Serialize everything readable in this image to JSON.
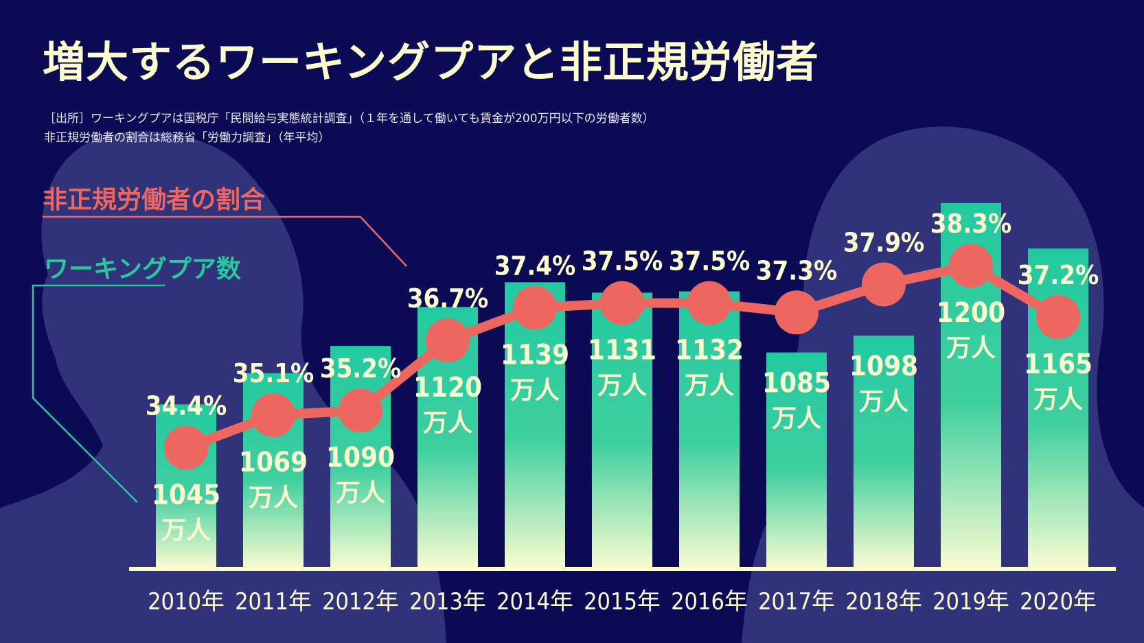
{
  "title": "増大するワーキングプアと非正規労働者",
  "source": {
    "line1": "［出所］ワーキングプアは国税庁「民間給与実態統計調査」（１年を通して働いても賃金が200万円以下の労働者数）",
    "line2": "非正規労働者の割合は総務省「労働力調査」（年平均）"
  },
  "legend": {
    "ratio_label": "非正規労働者の割合",
    "count_label": "ワーキングプア数"
  },
  "colors": {
    "background": "#0b0b55",
    "silhouette": "#31337a",
    "bar_top": "#22c9a0",
    "bar_bottom": "#f8fbd0",
    "line": "#ee6660",
    "text": "#fdfccf",
    "count_legend": "#29c9a0"
  },
  "chart_data": {
    "type": "bar+line",
    "categories": [
      "2010年",
      "2011年",
      "2012年",
      "2013年",
      "2014年",
      "2015年",
      "2016年",
      "2017年",
      "2018年",
      "2019年",
      "2020年"
    ],
    "series": [
      {
        "name": "ワーキングプア数",
        "type": "bar",
        "values": [
          1045,
          1069,
          1090,
          1120,
          1139,
          1131,
          1132,
          1085,
          1098,
          1200,
          1165
        ],
        "labels": [
          "1045",
          "1069",
          "1090",
          "1120",
          "1139",
          "1131",
          "1132",
          "1085",
          "1098",
          "1200",
          "1165"
        ],
        "unit": "万人"
      },
      {
        "name": "非正規労働者の割合",
        "type": "line",
        "values": [
          34.4,
          35.1,
          35.2,
          36.7,
          37.4,
          37.5,
          37.5,
          37.3,
          37.9,
          38.3,
          37.2
        ],
        "labels": [
          "34.4%",
          "35.1%",
          "35.2%",
          "36.7%",
          "37.4%",
          "37.5%",
          "37.5%",
          "37.3%",
          "37.9%",
          "38.3%",
          "37.2%"
        ]
      }
    ],
    "bar_ylim": [
      920,
      1220
    ],
    "line_ylim": [
      31.85,
      40.2
    ],
    "grid": false
  }
}
